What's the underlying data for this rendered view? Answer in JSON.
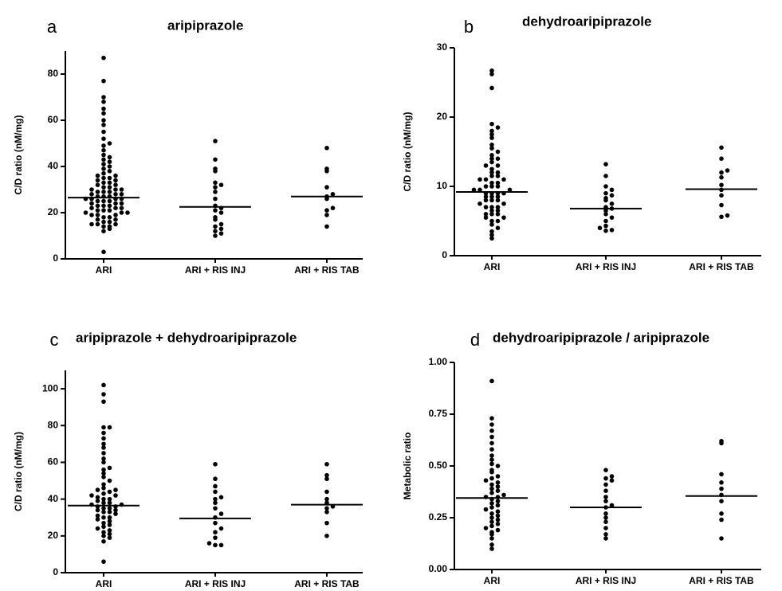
{
  "chart_data": [
    {
      "type": "dot",
      "label": "a",
      "title": "aripiprazole",
      "y_label": "C/D ratio (nM/mg)",
      "color": "#000000",
      "categories": [
        "ARI",
        "ARI + RIS INJ",
        "ARI + RIS TAB"
      ],
      "groups": [
        [
          3,
          12,
          13,
          14,
          14,
          15,
          15,
          15,
          16,
          16,
          17,
          17,
          18,
          18,
          19,
          19,
          19,
          20,
          20,
          20,
          21,
          21,
          21,
          22,
          22,
          22,
          23,
          23,
          23,
          24,
          24,
          24,
          25,
          25,
          25,
          26,
          26,
          26,
          26,
          27,
          27,
          27,
          28,
          28,
          28,
          29,
          29,
          29,
          30,
          30,
          30,
          31,
          31,
          32,
          32,
          33,
          33,
          34,
          34,
          35,
          35,
          36,
          36,
          37,
          38,
          39,
          40,
          41,
          42,
          43,
          44,
          45,
          47,
          49,
          50,
          52,
          55,
          58,
          60,
          63,
          65,
          68,
          70,
          77,
          87
        ],
        [
          10,
          11,
          12,
          13,
          14,
          15,
          17,
          18,
          20,
          21,
          22,
          23,
          26,
          29,
          31,
          32,
          33,
          38,
          39,
          43,
          51
        ],
        [
          14,
          19,
          21,
          22,
          26,
          27,
          28,
          31,
          38,
          39,
          48
        ]
      ],
      "medians": [
        26.5,
        22.5,
        27
      ],
      "ylim": [
        0,
        90
      ],
      "yticks": [
        0,
        20,
        40,
        60,
        80
      ]
    },
    {
      "type": "dot",
      "label": "b",
      "title": "dehydroaripiprazole",
      "y_label": "C/D ratio (nM/mg)",
      "color": "#000000",
      "categories": [
        "ARI",
        "ARI + RIS INJ",
        "ARI + RIS TAB"
      ],
      "groups": [
        [
          2.5,
          3,
          3.5,
          4,
          4.5,
          5,
          5,
          5.5,
          5.5,
          6,
          6,
          6,
          6.5,
          6.5,
          7,
          7,
          7,
          7.5,
          7.5,
          8,
          8,
          8,
          8.5,
          8.5,
          8.5,
          9,
          9,
          9,
          9,
          9.5,
          9.5,
          9.5,
          10,
          10,
          10,
          10.5,
          10.5,
          11,
          11,
          11,
          11.5,
          11.5,
          12,
          12,
          12.5,
          13,
          13,
          13.5,
          14,
          14,
          14.5,
          15,
          15.5,
          16,
          17,
          17.5,
          18,
          18.5,
          19,
          24.2,
          26.2,
          26.7
        ],
        [
          3.6,
          3.7,
          4,
          4.3,
          5,
          5.5,
          6,
          6.5,
          6.8,
          7,
          7.5,
          8,
          8.3,
          8.7,
          9,
          9.5,
          10,
          11.5,
          13.2
        ],
        [
          5.6,
          5.8,
          7.3,
          8.7,
          9.5,
          10.2,
          11.3,
          12,
          12.3,
          14,
          15.6
        ]
      ],
      "medians": [
        9.2,
        6.8,
        9.6
      ],
      "ylim": [
        0,
        30
      ],
      "yticks": [
        0,
        10,
        20,
        30
      ]
    },
    {
      "type": "dot",
      "label": "c",
      "title": "aripiprazole + dehydroaripiprazole",
      "y_label": "C/D ratio (nM/mg)",
      "color": "#000000",
      "categories": [
        "ARI",
        "ARI + RIS INJ",
        "ARI + RIS TAB"
      ],
      "groups": [
        [
          6,
          17,
          19,
          20,
          21,
          22,
          23,
          24,
          25,
          26,
          27,
          28,
          29,
          30,
          30,
          31,
          32,
          33,
          33,
          34,
          34,
          35,
          35,
          36,
          36,
          37,
          37,
          38,
          38,
          39,
          40,
          40,
          41,
          42,
          42,
          43,
          44,
          45,
          45,
          46,
          48,
          50,
          52,
          54,
          56,
          57,
          60,
          62,
          65,
          68,
          70,
          73,
          76,
          79,
          79,
          93,
          97,
          102
        ],
        [
          15,
          15,
          16,
          19,
          22,
          24,
          27,
          30,
          32,
          35,
          38,
          40,
          41,
          44,
          47,
          51,
          59
        ],
        [
          20,
          27,
          33,
          35,
          36,
          38,
          40,
          44,
          51,
          53,
          59
        ]
      ],
      "medians": [
        36.5,
        29.5,
        37
      ],
      "ylim": [
        0,
        110
      ],
      "yticks": [
        0,
        20,
        40,
        60,
        80,
        100
      ]
    },
    {
      "type": "dot",
      "label": "d",
      "title": "dehydroaripiprazole / aripiprazole",
      "y_label": "Metabolic ratio",
      "color": "#000000",
      "categories": [
        "ARI",
        "ARI + RIS INJ",
        "ARI + RIS TAB"
      ],
      "groups": [
        [
          0.1,
          0.12,
          0.15,
          0.17,
          0.18,
          0.19,
          0.2,
          0.21,
          0.22,
          0.23,
          0.24,
          0.25,
          0.26,
          0.27,
          0.28,
          0.29,
          0.3,
          0.31,
          0.32,
          0.33,
          0.34,
          0.35,
          0.35,
          0.36,
          0.37,
          0.38,
          0.39,
          0.4,
          0.41,
          0.42,
          0.43,
          0.44,
          0.45,
          0.47,
          0.48,
          0.5,
          0.51,
          0.53,
          0.55,
          0.58,
          0.61,
          0.64,
          0.67,
          0.7,
          0.73,
          0.91
        ],
        [
          0.15,
          0.17,
          0.2,
          0.23,
          0.25,
          0.27,
          0.3,
          0.31,
          0.33,
          0.35,
          0.38,
          0.41,
          0.43,
          0.44,
          0.45,
          0.48
        ],
        [
          0.15,
          0.24,
          0.27,
          0.33,
          0.36,
          0.39,
          0.42,
          0.46,
          0.61,
          0.62
        ]
      ],
      "medians": [
        0.345,
        0.3,
        0.355
      ],
      "ylim": [
        0,
        1
      ],
      "yticks": [
        {
          "value": 0,
          "label": "0.00"
        },
        {
          "value": 0.25,
          "label": "0.25"
        },
        {
          "value": 0.5,
          "label": "0.50"
        },
        {
          "value": 0.75,
          "label": "0.75"
        },
        {
          "value": 1,
          "label": "1.00"
        }
      ]
    }
  ]
}
